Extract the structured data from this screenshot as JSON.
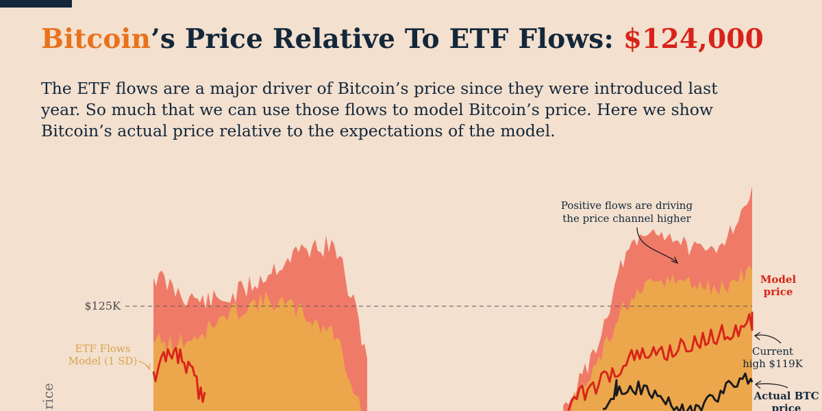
{
  "header": {
    "title_part1": "Bitcoin",
    "title_part2": "’s Price Relative To ETF Flows: ",
    "title_value": "$124,000",
    "subtitle": "The ETF flows are a major driver of Bitcoin’s price since they were introduced last year. So much that we can use those flows to model Bitcoin’s price. Here we show Bitcoin’s actual price relative to the expectations of the model."
  },
  "colors": {
    "background": "#f3e0cf",
    "navy": "#13273a",
    "accent_orange": "#e8721c",
    "accent_red": "#d8231a",
    "band_2sd": "#ef7a68",
    "band_1sd": "#eca64c",
    "model_line": "#d8231a",
    "actual_line": "#1b1b1b"
  },
  "chart_data": {
    "type": "area",
    "ylabel": "rice",
    "reference_line": {
      "value": 125000,
      "label": "$125K"
    },
    "series": [
      {
        "name": "ETF Flows Model (1 SD)"
      },
      {
        "name": "Model price"
      },
      {
        "name": "Actual BTC price"
      }
    ],
    "annotations": {
      "band": "ETF Flows Model (1 SD)",
      "flows": "Positive flows are driving the price channel higher",
      "model": "Model price",
      "current": "Current high $119K",
      "actual": "Actual BTC price"
    }
  }
}
